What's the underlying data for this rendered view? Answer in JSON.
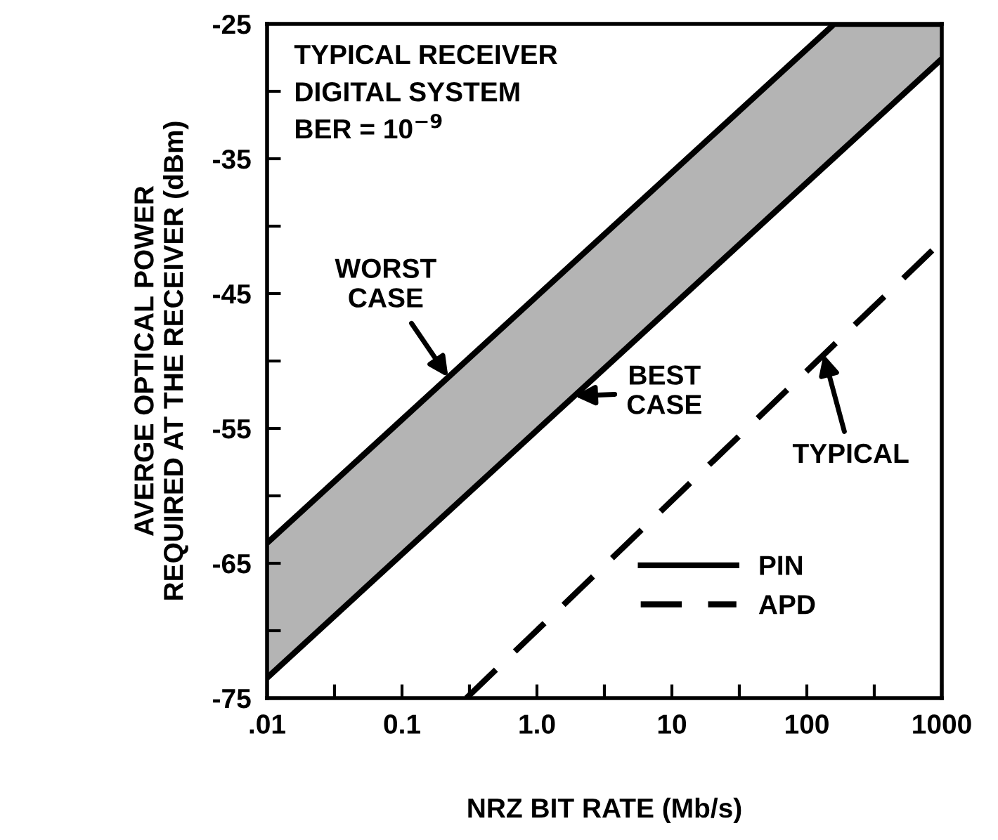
{
  "chart_data": {
    "type": "line",
    "xlabel": "NRZ BIT RATE (Mb/s)",
    "ylabel": "AVERGE OPTICAL POWER\nREQUIRED AT THE RECEIVER (dBm)",
    "log": "x",
    "xlim": [
      0.01,
      1000
    ],
    "ylim": [
      -75,
      -25
    ],
    "xticks": [
      {
        "value": 0.01,
        "label": ".01"
      },
      {
        "value": 0.0316,
        "label": null
      },
      0.1,
      {
        "value": 0.316,
        "label": null
      },
      {
        "value": 1,
        "label": "1.0"
      },
      {
        "value": 3.16,
        "label": null
      },
      10,
      {
        "value": 31.6,
        "label": null
      },
      100,
      {
        "value": 316,
        "label": null
      },
      1000
    ],
    "yticks": [
      -75,
      {
        "value": -70,
        "label": null
      },
      -65,
      {
        "value": -60,
        "label": null
      },
      -55,
      {
        "value": -50,
        "label": null
      },
      -45,
      {
        "value": -40,
        "label": null
      },
      -35,
      {
        "value": -30,
        "label": null
      },
      -25
    ],
    "grid": false,
    "legend": "bottom right",
    "marker": "none",
    "series": [
      {
        "name": "PIN",
        "line_style": "solid",
        "color": "#000000",
        "x": [
          0.01,
          160,
          1000
        ],
        "values": [
          -63.5,
          -25,
          -25
        ],
        "lower": [
          -73.5,
          -34.9,
          -27.6
        ],
        "upper": [
          -63.5,
          -25,
          -25
        ]
      },
      {
        "line_style": "solid",
        "color": "#000000",
        "x": [
          0.01,
          160,
          1000
        ],
        "values": [
          -73.5,
          -34.9,
          -27.6
        ]
      },
      {
        "name": "APD",
        "line_style": "dashed",
        "color": "#000000",
        "x": [
          0.3,
          850
        ],
        "values": [
          -75,
          -41.8
        ]
      }
    ],
    "annotations": [
      "TYPICAL RECEIVER\nDIGITAL SYSTEM\nBER = 10$^{−9}$",
      {
        "text": "WORST\nCASE",
        "x": 0.22,
        "y": -51.2
      },
      {
        "text": "BEST\nCASE",
        "x": 1.9,
        "y": -52.6
      },
      {
        "text": "TYPICAL",
        "x": 133,
        "y": -49.5
      }
    ]
  }
}
